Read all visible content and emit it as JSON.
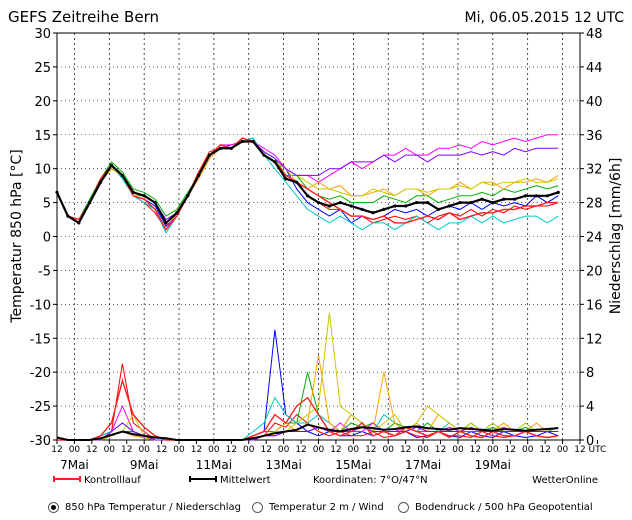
{
  "header": {
    "title": "GEFS  Zeitreihe  Bern",
    "run": "Mi, 06.05.2015  12  UTC"
  },
  "footer": {
    "legend_control": "Kontrolllauf",
    "legend_mean": "Mittelwert",
    "coords": "Koordinaten:  7°O/47°N",
    "brand": "WetterOnline"
  },
  "options": [
    {
      "label": "850 hPa Temperatur / Niederschlag",
      "selected": true
    },
    {
      "label": "Temperatur 2 m / Wind",
      "selected": false
    },
    {
      "label": "Bodendruck / 500 hPa Geopotential",
      "selected": false
    }
  ],
  "chart_data": {
    "type": "line",
    "ylabel": "Temperatur  850  hPa  [°C]",
    "y2label": "Niederschlag  [mm/6h]",
    "ylim": [
      -30,
      30
    ],
    "y_ticks": [
      "30",
      "25",
      "20",
      "15",
      "10",
      "5",
      "0",
      "-5",
      "-10",
      "-15",
      "-20",
      "-25",
      "-30"
    ],
    "y2lim": [
      0,
      48
    ],
    "y2_ticks": [
      "48",
      "44",
      "40",
      "36",
      "32",
      "28",
      "24",
      "20",
      "16",
      "12",
      "8",
      "4",
      "0"
    ],
    "x_hour_ticks": [
      "12",
      "00",
      "12",
      "00",
      "12",
      "00",
      "12",
      "00",
      "12",
      "00",
      "12",
      "00",
      "12",
      "00",
      "12",
      "00",
      "12",
      "00",
      "12",
      "00",
      "12",
      "00",
      "12",
      "00",
      "12",
      "00",
      "12",
      "00",
      "12",
      "00",
      "12",
      "UTC"
    ],
    "x_day_labels": [
      "7Mai",
      "9Mai",
      "11Mai",
      "13Mai",
      "15Mai",
      "17Mai",
      "19Mai"
    ],
    "grid": true,
    "mean_temperature": [
      6.5,
      3,
      2,
      5,
      8,
      10.5,
      9,
      6.5,
      6,
      5,
      2,
      3.5,
      6,
      9,
      12,
      13,
      13,
      14,
      14,
      12,
      11,
      8.5,
      8,
      6,
      5,
      4.5,
      5,
      4.5,
      4,
      3.5,
      4,
      4.5,
      4.5,
      5,
      5,
      4,
      4.5,
      5,
      5,
      5.5,
      5,
      5.5,
      5.5,
      6,
      6,
      6,
      6.5
    ],
    "control_temperature": [
      6.5,
      3,
      2.5,
      5,
      8.5,
      10.5,
      9,
      6,
      5.5,
      4,
      1,
      3,
      6,
      9.5,
      12,
      13.5,
      13,
      14.5,
      14,
      12,
      11,
      9,
      8,
      7,
      6,
      5,
      4,
      3,
      3,
      2.5,
      3,
      2,
      2,
      2.5,
      3,
      2.5,
      3.5,
      2.5,
      3,
      3.5,
      3.5,
      4,
      4,
      4.5,
      4.5,
      5,
      5
    ],
    "mean_precip": [
      0.3,
      0,
      0,
      0,
      0.2,
      0.6,
      1,
      0.7,
      0.5,
      0.3,
      0.2,
      0,
      0,
      0,
      0,
      0,
      0,
      0,
      0.2,
      0.5,
      0.8,
      1,
      1.2,
      1.8,
      1.5,
      1.2,
      1,
      1.3,
      1.5,
      1.4,
      1.2,
      1.3,
      1.5,
      1.6,
      1.4,
      1.3,
      1.2,
      1.4,
      1.3,
      1.2,
      1.1,
      1.3,
      1.2,
      1.1,
      1.2,
      1.3,
      1.4
    ],
    "control_precip": [
      0,
      0,
      0,
      0,
      0.5,
      2,
      7,
      3,
      1.5,
      0.5,
      0,
      0,
      0,
      0,
      0,
      0,
      0,
      0,
      0.5,
      1,
      3,
      2,
      4,
      5,
      3,
      1,
      0.5,
      1,
      2,
      0.5,
      1,
      0.5,
      1.5,
      1,
      0.5,
      1,
      0.3,
      1,
      0.5,
      0.3,
      1,
      0.5,
      0.5,
      1,
      0.5,
      0.3,
      0.5
    ],
    "series": [
      {
        "color": "#0000ff",
        "temps": [
          6.5,
          3,
          2,
          5,
          8.5,
          10,
          9,
          6,
          5.5,
          4.5,
          1.5,
          3,
          6,
          9,
          12,
          13,
          13.5,
          14,
          14.5,
          12,
          11,
          10,
          7,
          5,
          4,
          3,
          4,
          2,
          3,
          2.5,
          3,
          4,
          3.5,
          4,
          3,
          4,
          4.5,
          4,
          5,
          4,
          5,
          4.5,
          5,
          4.5,
          6,
          5,
          6
        ],
        "precip": [
          0,
          0,
          0,
          0,
          0,
          0.5,
          1,
          0.5,
          0.3,
          0,
          0,
          0,
          0,
          0,
          0,
          0,
          0,
          0,
          0.5,
          1,
          13,
          3,
          2,
          1,
          0.5,
          1,
          0.5,
          0.5,
          1,
          0.5,
          1,
          0.5,
          1,
          0.3,
          0.5,
          1,
          0.5,
          0.3,
          1,
          0.5,
          0.3,
          1,
          0.5,
          0.3,
          0.5,
          1,
          0.5
        ]
      },
      {
        "color": "#ff0000",
        "temps": [
          6.5,
          3,
          2,
          5,
          8,
          10,
          9,
          6,
          5,
          3.5,
          1,
          3,
          6,
          9.5,
          12.5,
          13,
          13,
          14,
          14,
          12,
          11,
          9,
          8,
          6,
          5,
          4,
          4,
          3,
          3,
          2,
          2.5,
          3,
          2.5,
          3,
          2,
          3,
          3.5,
          3,
          4,
          3,
          4,
          3.5,
          4.5,
          4,
          4.5,
          4.5,
          5
        ],
        "precip": [
          0,
          0,
          0,
          0,
          0.5,
          1,
          9,
          2,
          1,
          0,
          0,
          0,
          0,
          0,
          0,
          0,
          0,
          0,
          0.3,
          0.5,
          2,
          1.5,
          3,
          2,
          1,
          0.5,
          1,
          0.5,
          0.5,
          1,
          0.3,
          0.5,
          1,
          0.5,
          0.3,
          1,
          0.5,
          0.5,
          0.3,
          1,
          0.5,
          0.3,
          0.5,
          1,
          0.5,
          0.3,
          0.5
        ]
      },
      {
        "color": "#00b000",
        "temps": [
          6.5,
          3,
          2.5,
          5.5,
          8.5,
          11,
          9.5,
          7,
          6.5,
          5.5,
          3,
          4,
          6.5,
          9,
          12,
          13,
          13,
          14.5,
          14,
          12.5,
          11.5,
          9,
          9,
          7,
          6,
          5.5,
          6,
          5,
          5,
          5,
          6,
          5.5,
          5,
          6,
          6,
          5,
          5.5,
          6,
          6,
          6.5,
          6,
          7,
          6.5,
          7,
          7.5,
          7,
          7.5
        ],
        "precip": [
          0,
          0,
          0,
          0,
          0,
          0.5,
          1,
          1,
          0.5,
          0,
          0,
          0,
          0,
          0,
          0,
          0,
          0,
          0,
          0.5,
          1,
          1,
          2,
          2,
          8,
          3,
          2,
          1,
          2,
          1.5,
          2,
          1,
          2,
          1.5,
          1,
          2,
          1,
          1.5,
          1,
          2,
          1,
          1.5,
          1,
          1,
          1.5,
          1,
          1,
          1.5
        ]
      },
      {
        "color": "#ff00ff",
        "temps": [
          6.5,
          3,
          2,
          5,
          8,
          10,
          9,
          6,
          5.5,
          4,
          1,
          3.5,
          6,
          9,
          12,
          13.5,
          13.5,
          14,
          14,
          13,
          12,
          10,
          9,
          9,
          8,
          9,
          10,
          11,
          10,
          11,
          12,
          12,
          13,
          12,
          12,
          13,
          13,
          13.5,
          13,
          14,
          13.5,
          14,
          14.5,
          14,
          14.5,
          15,
          15
        ],
        "precip": [
          0,
          0,
          0,
          0,
          0,
          1,
          4,
          1,
          0.5,
          0,
          0,
          0,
          0,
          0,
          0,
          0,
          0,
          0,
          0,
          0.5,
          0.5,
          1,
          1,
          1,
          1.5,
          1,
          2,
          1,
          1,
          2,
          1,
          1,
          1.5,
          1,
          1,
          1,
          1.5,
          1,
          1,
          1,
          1,
          1.5,
          1,
          1,
          1,
          1,
          1
        ]
      },
      {
        "color": "#00c8c8",
        "temps": [
          6.5,
          3,
          2,
          5,
          8.5,
          10.5,
          8.5,
          6,
          5,
          4,
          0.5,
          3,
          6,
          9.5,
          12,
          13,
          13,
          14,
          14.5,
          12,
          10,
          8,
          6,
          4,
          3,
          2,
          3,
          2,
          1,
          2,
          2,
          1,
          2,
          3,
          2,
          1,
          2,
          2,
          3,
          2,
          3,
          2,
          2.5,
          3,
          3,
          2,
          3
        ],
        "precip": [
          0,
          0,
          0,
          0,
          0.5,
          1,
          2,
          1,
          0.5,
          0,
          0,
          0,
          0,
          0,
          0,
          0,
          0,
          0,
          1,
          2,
          5,
          3,
          2,
          2,
          3,
          2,
          1,
          3,
          2,
          1,
          3,
          2,
          1,
          2,
          1,
          1,
          2,
          1,
          2,
          1,
          2,
          1,
          1,
          2,
          1,
          1,
          1
        ]
      },
      {
        "color": "#ffa000",
        "temps": [
          6.5,
          3,
          2,
          5,
          8,
          10,
          9,
          6.5,
          6,
          5,
          2,
          3.5,
          6,
          8.5,
          11.5,
          13,
          13,
          14,
          14,
          12,
          11,
          10,
          8,
          7,
          8,
          7,
          7.5,
          6,
          6,
          6.5,
          7,
          6,
          7,
          7,
          6,
          7,
          7,
          8,
          7,
          8,
          8,
          7,
          8,
          8,
          8.5,
          8,
          9
        ],
        "precip": [
          0,
          0,
          0,
          0,
          0,
          0.5,
          1,
          0.5,
          0.3,
          0,
          0,
          0,
          0,
          0,
          0,
          0,
          0,
          0,
          0.2,
          0.5,
          1,
          2,
          1,
          2,
          10,
          2,
          1,
          3,
          2,
          1,
          8,
          2,
          1,
          2,
          1,
          3,
          2,
          1,
          2,
          1,
          1,
          2,
          1,
          1,
          2,
          1,
          1
        ]
      },
      {
        "color": "#c8c800",
        "temps": [
          6.5,
          3,
          2,
          5,
          8,
          10,
          9,
          6,
          6,
          5,
          2,
          3,
          6,
          9,
          12,
          13,
          13,
          14,
          14,
          12,
          11,
          10,
          9,
          8,
          7,
          7,
          6.5,
          6,
          6,
          7,
          6.5,
          6,
          7,
          7,
          6.5,
          7,
          7,
          7.5,
          7,
          8,
          7.5,
          8,
          8,
          8.5,
          8,
          8,
          8.5
        ],
        "precip": [
          0,
          0,
          0,
          0,
          0,
          0.5,
          1,
          3,
          0.5,
          0,
          0,
          0,
          0,
          0,
          0,
          0,
          0,
          0,
          0,
          0.5,
          1,
          1,
          2,
          3,
          4,
          15,
          4,
          3,
          2,
          1,
          2,
          3,
          1,
          2,
          4,
          3,
          2,
          1,
          2,
          1,
          2,
          1,
          1,
          2,
          1,
          1,
          1
        ]
      },
      {
        "color": "#8000ff",
        "temps": [
          6.5,
          3,
          2,
          5,
          8,
          10.5,
          9,
          6.5,
          6,
          5,
          2.5,
          3.5,
          6,
          9,
          12,
          13,
          13,
          14,
          14,
          12.5,
          11.5,
          10,
          9,
          9,
          9,
          10,
          10,
          11,
          11,
          11,
          12,
          11,
          12,
          12,
          11,
          12,
          12,
          12,
          12.5,
          12,
          12.5,
          12,
          13,
          12.5,
          13,
          13,
          13
        ],
        "precip": [
          0,
          0,
          0,
          0,
          0,
          1,
          2,
          1,
          0.5,
          0,
          0,
          0,
          0,
          0,
          0,
          0,
          0,
          0,
          0,
          0.5,
          0.5,
          1,
          1,
          1,
          1.5,
          1,
          1,
          1,
          1.5,
          1,
          1,
          1,
          1,
          1.5,
          1,
          1,
          1,
          1,
          1.5,
          1,
          1,
          1,
          1,
          1,
          1,
          1,
          1
        ]
      }
    ]
  }
}
